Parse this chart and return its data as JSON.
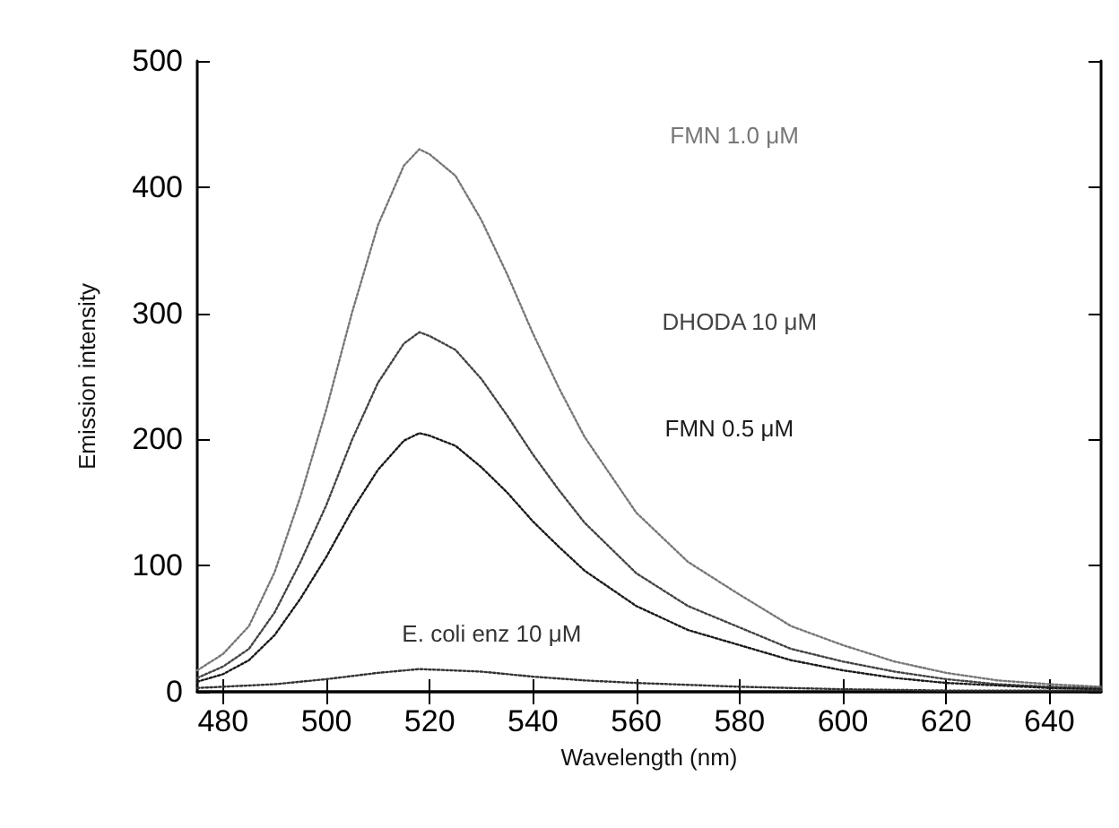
{
  "chart_data": {
    "type": "line",
    "xlabel": "Wavelength (nm)",
    "ylabel": "Emission intensity",
    "x": [
      475,
      480,
      485,
      490,
      495,
      500,
      505,
      510,
      515,
      518,
      520,
      525,
      530,
      535,
      540,
      545,
      550,
      560,
      570,
      580,
      590,
      600,
      610,
      620,
      630,
      640,
      650
    ],
    "series": [
      {
        "name": "FMN 1.0 μM",
        "color": "#777777",
        "values": [
          17,
          30,
          52,
          95,
          155,
          224,
          301,
          370,
          417,
          430,
          426,
          409,
          374,
          331,
          284,
          241,
          202,
          142,
          103,
          77,
          52,
          37,
          24,
          15,
          9,
          6,
          4
        ]
      },
      {
        "name": "DHODA 10 μM",
        "color": "#444444",
        "values": [
          11,
          20,
          34,
          63,
          103,
          148,
          200,
          245,
          276,
          285,
          282,
          271,
          248,
          219,
          188,
          160,
          134,
          94,
          68,
          51,
          34,
          24,
          16,
          10,
          6,
          4,
          3
        ]
      },
      {
        "name": "FMN 0.5 μM",
        "color": "#1a1a1a",
        "values": [
          8,
          14,
          25,
          45,
          74,
          107,
          144,
          176,
          199,
          205,
          203,
          195,
          178,
          158,
          135,
          115,
          96,
          68,
          49,
          37,
          25,
          17,
          11,
          7,
          5,
          3,
          2
        ]
      },
      {
        "name": "E. coli enz 10 μM",
        "color": "#333333",
        "x": [
          475,
          480,
          490,
          500,
          510,
          518,
          530,
          540,
          550,
          560,
          580,
          600,
          620,
          640,
          650
        ],
        "values": [
          3,
          4,
          6,
          10,
          15,
          18,
          16,
          12,
          9,
          7,
          4,
          2,
          1,
          1,
          1
        ]
      }
    ],
    "xlim": [
      475,
      650
    ],
    "xticks": [
      480,
      500,
      520,
      540,
      560,
      580,
      600,
      620,
      640
    ],
    "ylim": [
      0,
      500
    ],
    "yticks": [
      0,
      100,
      200,
      300,
      400,
      500
    ],
    "grid": false,
    "legend": false,
    "marker": "none",
    "line_style": "dotted"
  }
}
